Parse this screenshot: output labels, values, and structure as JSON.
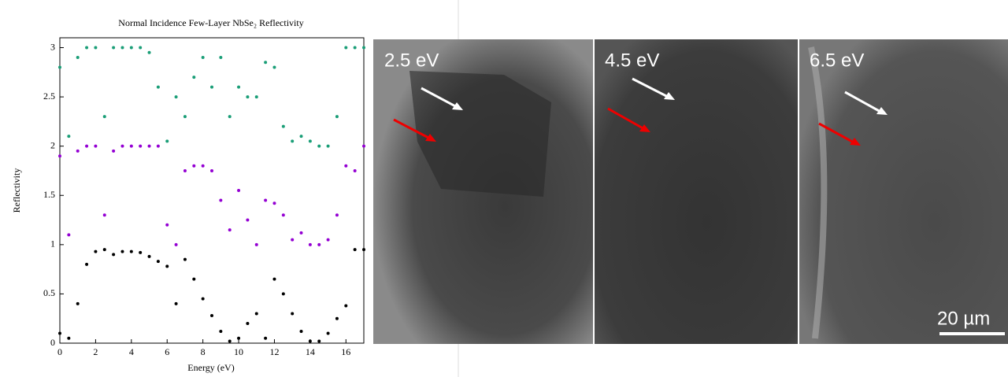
{
  "chart_data": {
    "type": "scatter",
    "title": "Normal Incidence Few-Layer NbSe₂ Reflectivity",
    "xlabel": "Energy (eV)",
    "ylabel": "Reflectivity",
    "x": [
      0,
      0.5,
      1,
      1.5,
      2,
      2.5,
      3,
      3.5,
      4,
      4.5,
      5,
      5.5,
      6,
      6.5,
      7,
      7.5,
      8,
      8.5,
      9,
      9.5,
      10,
      10.5,
      11,
      11.5,
      12,
      12.5,
      13,
      13.5,
      14,
      14.5,
      15,
      15.5,
      16,
      16.5,
      17
    ],
    "series": [
      {
        "color": "#1a9e77",
        "values": [
          2.8,
          2.1,
          2.9,
          3.0,
          3.0,
          2.3,
          3.0,
          3.0,
          3.0,
          3.0,
          2.95,
          2.6,
          2.05,
          2.5,
          2.3,
          2.7,
          2.9,
          2.6,
          2.9,
          2.3,
          2.6,
          2.5,
          2.5,
          2.85,
          2.8,
          2.2,
          2.05,
          2.1,
          2.05,
          2.0,
          2.0,
          2.3,
          3.0,
          3.0,
          3.0
        ]
      },
      {
        "color": "#9400d3",
        "values": [
          1.9,
          1.1,
          1.95,
          2.0,
          2.0,
          1.3,
          1.95,
          2.0,
          2.0,
          2.0,
          2.0,
          2.0,
          1.2,
          1.0,
          1.75,
          1.8,
          1.8,
          1.75,
          1.45,
          1.15,
          1.55,
          1.25,
          1.0,
          1.45,
          1.42,
          1.3,
          1.05,
          1.12,
          1.0,
          1.0,
          1.05,
          1.3,
          1.8,
          1.75,
          2.0
        ]
      },
      {
        "color": "#000000",
        "values": [
          0.1,
          0.05,
          0.4,
          0.8,
          0.93,
          0.95,
          0.9,
          0.93,
          0.93,
          0.92,
          0.88,
          0.83,
          0.78,
          0.4,
          0.85,
          0.65,
          0.45,
          0.28,
          0.12,
          0.02,
          0.05,
          0.2,
          0.3,
          0.05,
          0.65,
          0.5,
          0.3,
          0.12,
          0.02,
          0.02,
          0.1,
          0.25,
          0.38,
          0.95,
          0.95
        ]
      }
    ],
    "xlim": [
      0,
      17
    ],
    "ylim": [
      0,
      3.1
    ],
    "xticks": [
      0,
      2,
      4,
      6,
      8,
      10,
      12,
      14,
      16
    ],
    "yticks": [
      0,
      0.5,
      1,
      1.5,
      2,
      2.5,
      3
    ]
  },
  "images": [
    {
      "label": "2.5 eV"
    },
    {
      "label": "4.5 eV"
    },
    {
      "label": "6.5 eV"
    }
  ],
  "scale_bar": "20 µm"
}
